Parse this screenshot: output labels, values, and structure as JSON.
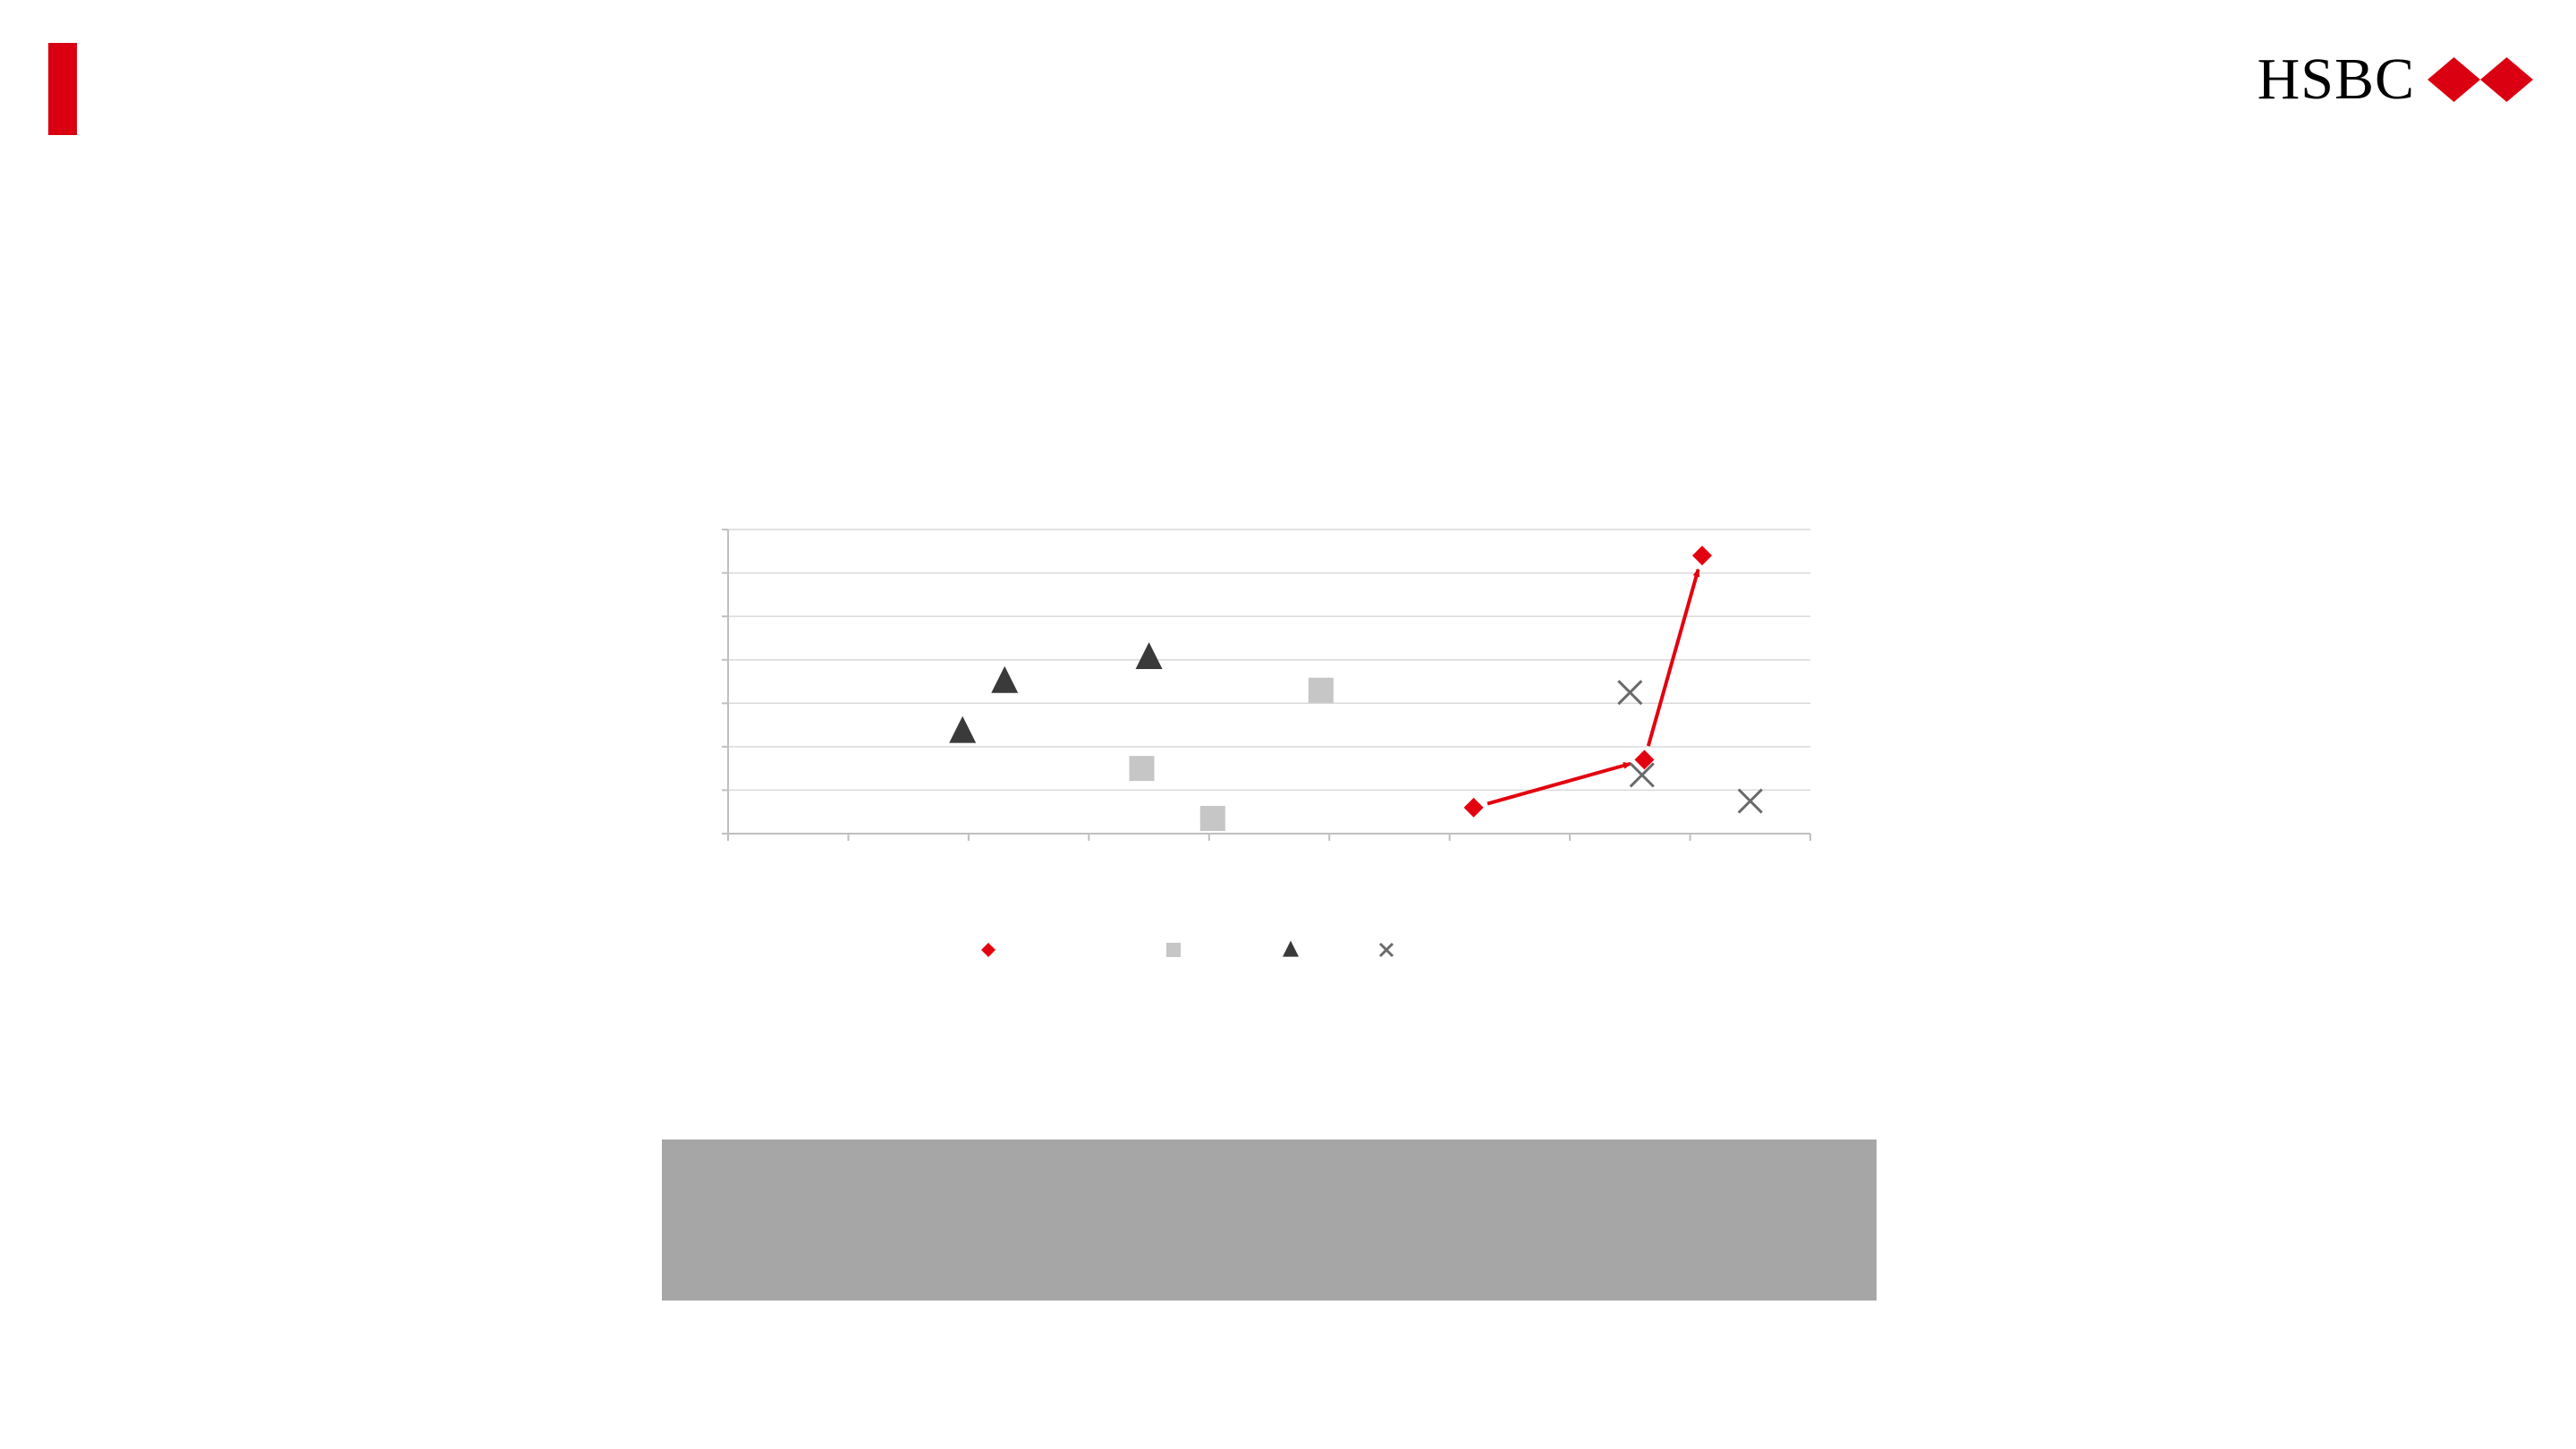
{
  "brand": {
    "name": "HSBC",
    "logo_icon": "hsbc-hexagon-icon",
    "accent_color": "#db0011"
  },
  "note_box": {
    "color": "#a6a6a6"
  },
  "chart_data": {
    "type": "scatter",
    "title": "",
    "xlabel": "",
    "ylabel": "",
    "xlim": [
      0,
      9
    ],
    "ylim": [
      0,
      7
    ],
    "grid": true,
    "legend_position": "bottom",
    "series": [
      {
        "color": "#e3000f",
        "marker": "diamond",
        "points": [
          [
            6.2,
            0.6
          ],
          [
            7.62,
            1.7
          ],
          [
            8.1,
            6.4
          ]
        ],
        "connected": true,
        "arrows": true
      },
      {
        "color": "#c6c6c6",
        "marker": "square",
        "points": [
          [
            3.44,
            1.5
          ],
          [
            4.03,
            0.35
          ],
          [
            4.93,
            3.3
          ]
        ]
      },
      {
        "color": "#3a3a3a",
        "marker": "triangle",
        "points": [
          [
            1.95,
            2.35
          ],
          [
            2.3,
            3.5
          ],
          [
            3.5,
            4.05
          ]
        ]
      },
      {
        "color": "#6a6a6a",
        "marker": "x",
        "points": [
          [
            7.5,
            3.25
          ],
          [
            7.6,
            1.35
          ],
          [
            8.5,
            0.75
          ]
        ]
      }
    ]
  }
}
